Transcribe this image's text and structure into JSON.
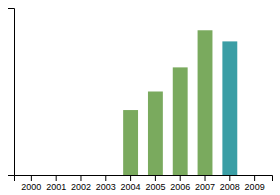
{
  "chart_data": {
    "type": "bar",
    "categories": [
      "2000",
      "2001",
      "2002",
      "2003",
      "2004",
      "2005",
      "2006",
      "2007",
      "2008",
      "2009"
    ],
    "values": [
      0,
      0,
      0,
      0,
      35,
      45,
      58,
      78,
      72,
      0
    ],
    "colors": [
      "#7aaa5e",
      "#7aaa5e",
      "#7aaa5e",
      "#7aaa5e",
      "#7aaa5e",
      "#7aaa5e",
      "#7aaa5e",
      "#7aaa5e",
      "#3a9ea5",
      "#3a9ea5"
    ],
    "ylim": [
      0,
      90
    ],
    "yticks": [],
    "grid": false,
    "tick_labels": "x"
  }
}
